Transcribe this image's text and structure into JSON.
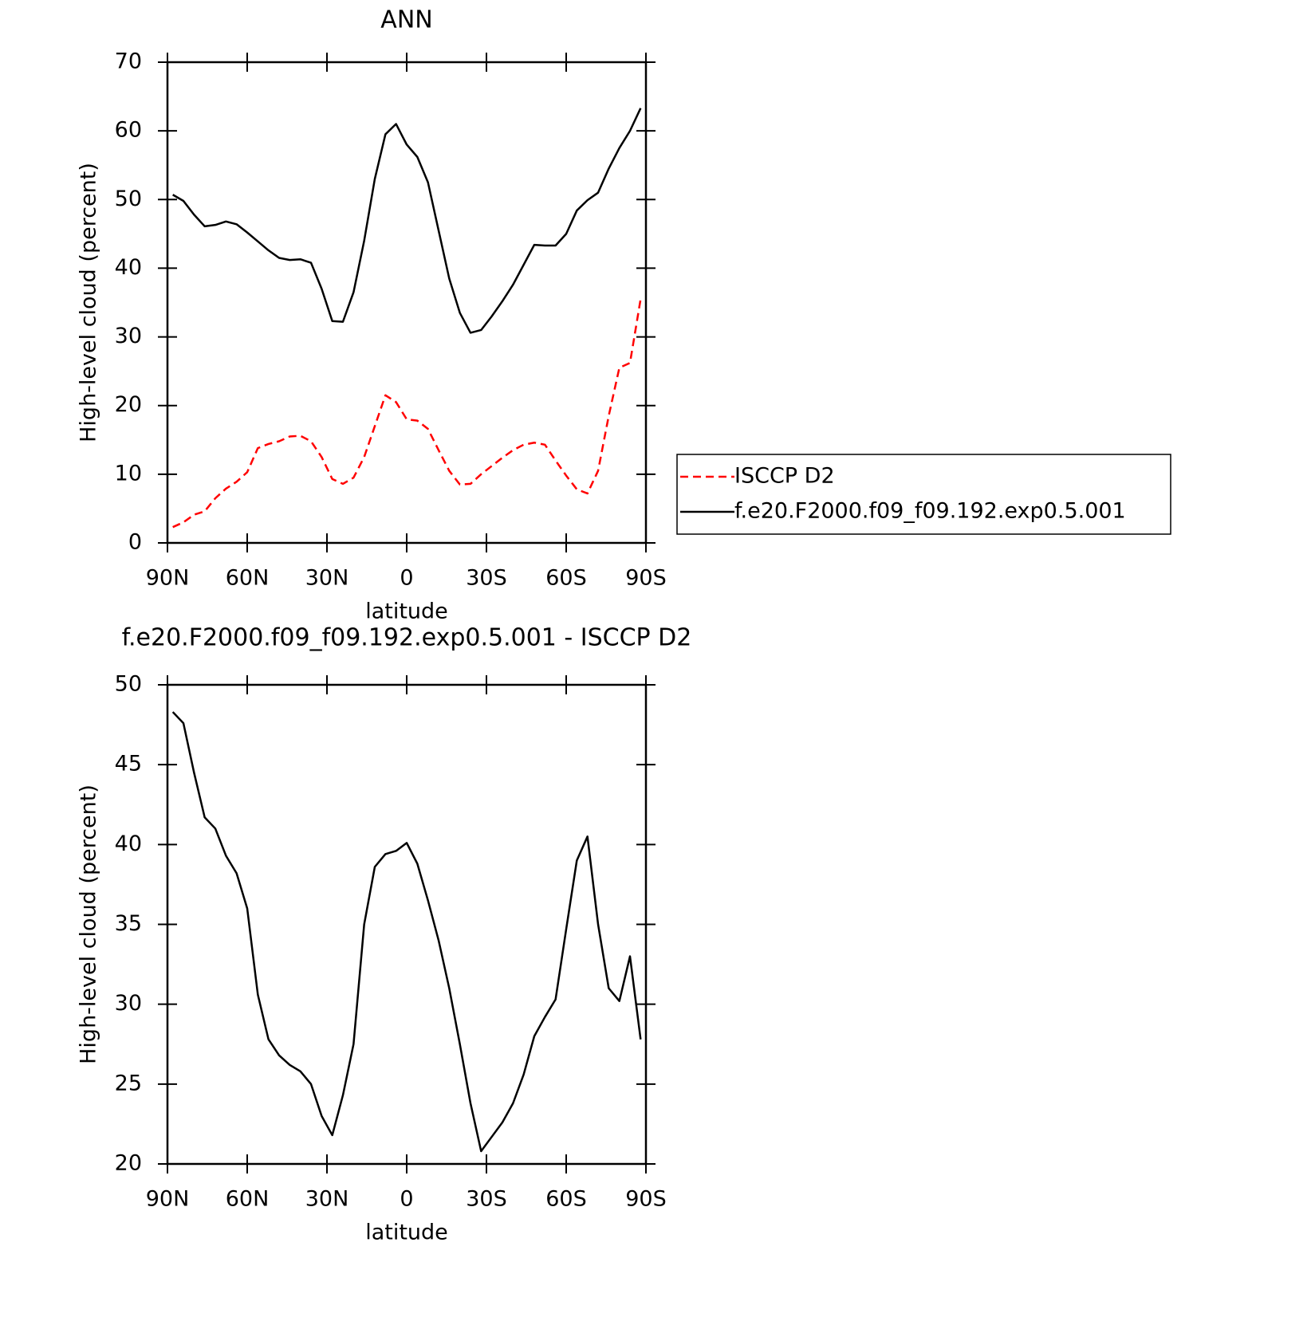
{
  "chart_data": [
    {
      "type": "line",
      "title": "ANN",
      "xlabel": "latitude",
      "ylabel": "High-level cloud (percent)",
      "x": [
        88,
        84,
        80,
        76,
        72,
        68,
        64,
        60,
        56,
        52,
        48,
        44,
        40,
        36,
        32,
        28,
        24,
        20,
        16,
        12,
        8,
        4,
        0,
        -4,
        -8,
        -12,
        -16,
        -20,
        -24,
        -28,
        -32,
        -36,
        -40,
        -44,
        -48,
        -52,
        -56,
        -60,
        -64,
        -68,
        -72,
        -76,
        -80,
        -84,
        -88
      ],
      "series": [
        {
          "name": "ISCCP D2",
          "color": "#ff0000",
          "dashed": true,
          "values": [
            2.3,
            3.0,
            4.1,
            4.6,
            6.5,
            7.9,
            8.9,
            10.3,
            13.8,
            14.4,
            14.8,
            15.5,
            15.6,
            14.8,
            12.5,
            9.3,
            8.6,
            9.5,
            12.5,
            17.0,
            21.5,
            20.5,
            18.0,
            17.8,
            16.6,
            13.5,
            10.5,
            8.5,
            8.6,
            10.0,
            11.2,
            12.4,
            13.5,
            14.3,
            14.6,
            14.3,
            12.0,
            9.8,
            7.8,
            7.2,
            10.5,
            18.5,
            25.5,
            26.2,
            35.5
          ]
        },
        {
          "name": "f.e20.F2000.f09_f09.192.exp0.5.001",
          "color": "#000000",
          "dashed": false,
          "values": [
            50.7,
            49.8,
            47.8,
            46.1,
            46.3,
            46.8,
            46.4,
            45.2,
            43.9,
            42.6,
            41.5,
            41.2,
            41.3,
            40.8,
            37.0,
            32.3,
            32.2,
            36.5,
            44.0,
            53.0,
            59.5,
            61.0,
            58.0,
            56.2,
            52.5,
            45.5,
            38.5,
            33.5,
            30.6,
            31.0,
            33.0,
            35.2,
            37.6,
            40.5,
            43.4,
            43.3,
            43.3,
            45.0,
            48.4,
            49.9,
            51.0,
            54.5,
            57.5,
            60.0,
            63.3
          ]
        }
      ],
      "xlim": [
        90,
        -90
      ],
      "xticks": [
        {
          "value": 90,
          "label": "90N"
        },
        {
          "value": 60,
          "label": "60N"
        },
        {
          "value": 30,
          "label": "30N"
        },
        0,
        {
          "value": -30,
          "label": "30S"
        },
        {
          "value": -60,
          "label": "60S"
        },
        {
          "value": -90,
          "label": "90S"
        }
      ],
      "ylim": [
        0,
        70
      ],
      "yticks": [
        0,
        10,
        20,
        30,
        40,
        50,
        60,
        70
      ],
      "legend": "right"
    },
    {
      "type": "line",
      "title": "f.e20.F2000.f09_f09.192.exp0.5.001 - ISCCP D2",
      "xlabel": "latitude",
      "ylabel": "High-level cloud (percent)",
      "x": [
        88,
        84,
        80,
        76,
        72,
        68,
        64,
        60,
        56,
        52,
        48,
        44,
        40,
        36,
        32,
        28,
        24,
        20,
        16,
        12,
        8,
        4,
        0,
        -4,
        -8,
        -12,
        -16,
        -20,
        -24,
        -28,
        -32,
        -36,
        -40,
        -44,
        -48,
        -52,
        -56,
        -60,
        -64,
        -68,
        -72,
        -76,
        -80,
        -84,
        -88
      ],
      "series": [
        {
          "color": "#000000",
          "dashed": false,
          "values": [
            48.3,
            47.6,
            44.5,
            41.7,
            41.0,
            39.3,
            38.2,
            36.0,
            30.6,
            27.8,
            26.8,
            26.2,
            25.8,
            25.0,
            23.0,
            21.8,
            24.3,
            27.5,
            35.0,
            38.6,
            39.4,
            39.6,
            40.1,
            38.8,
            36.5,
            34.0,
            31.0,
            27.5,
            23.8,
            20.8,
            21.7,
            22.6,
            23.8,
            25.6,
            28.0,
            29.2,
            30.3,
            34.7,
            39.0,
            40.5,
            35.0,
            31.0,
            30.2,
            33.0,
            27.8
          ]
        }
      ],
      "xlim": [
        90,
        -90
      ],
      "xticks": [
        {
          "value": 90,
          "label": "90N"
        },
        {
          "value": 60,
          "label": "60N"
        },
        {
          "value": 30,
          "label": "30N"
        },
        0,
        {
          "value": -30,
          "label": "30S"
        },
        {
          "value": -60,
          "label": "60S"
        },
        {
          "value": -90,
          "label": "90S"
        }
      ],
      "ylim": [
        20,
        50
      ],
      "yticks": [
        20,
        25,
        30,
        35,
        40,
        45,
        50
      ]
    }
  ]
}
